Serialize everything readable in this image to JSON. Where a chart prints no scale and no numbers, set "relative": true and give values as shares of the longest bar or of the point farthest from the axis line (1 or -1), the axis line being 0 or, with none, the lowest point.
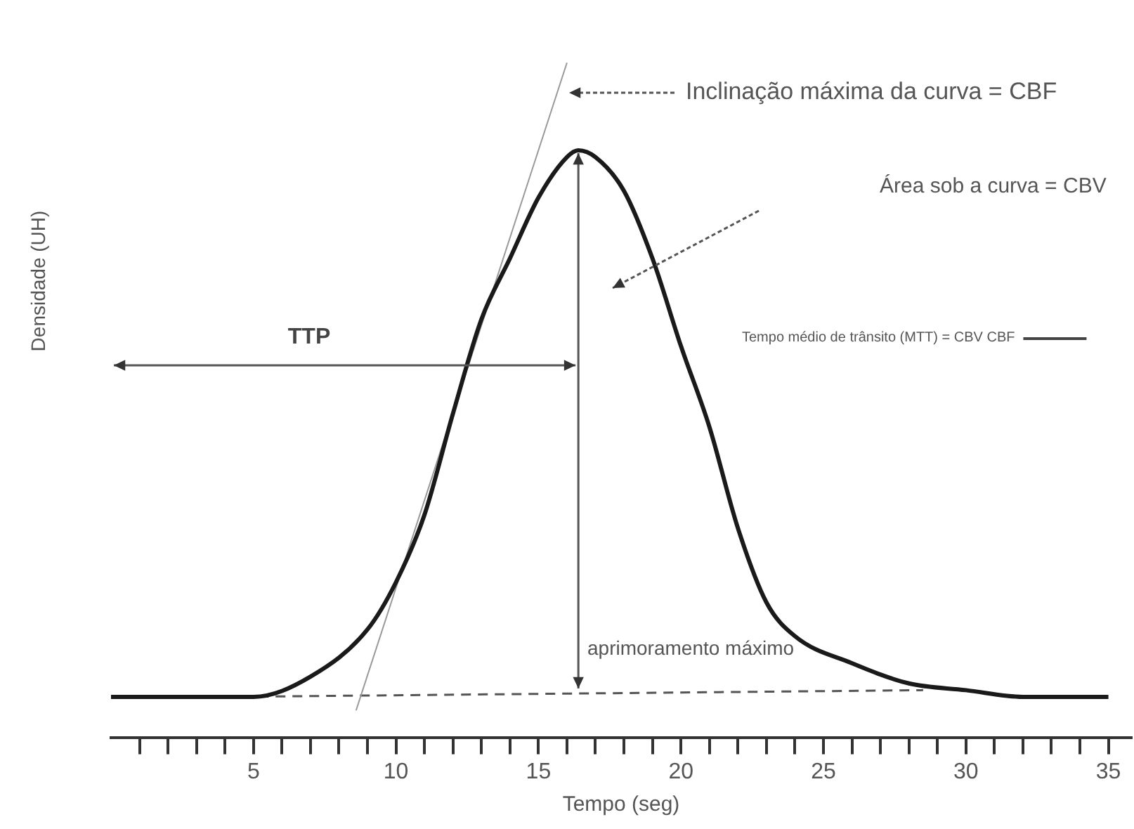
{
  "chart_data": {
    "type": "line",
    "relative": true,
    "xlabel": "Tempo (seg)",
    "ylabel": "Densidade (UH)",
    "xlim": [
      0,
      35.8
    ],
    "xticks": [
      {
        "value": 1,
        "label": null
      },
      {
        "value": 2,
        "label": null
      },
      {
        "value": 3,
        "label": null
      },
      {
        "value": 4,
        "label": null
      },
      5,
      {
        "value": 6,
        "label": null
      },
      {
        "value": 7,
        "label": null
      },
      {
        "value": 8,
        "label": null
      },
      {
        "value": 9,
        "label": null
      },
      10,
      {
        "value": 11,
        "label": null
      },
      {
        "value": 12,
        "label": null
      },
      {
        "value": 13,
        "label": null
      },
      {
        "value": 14,
        "label": null
      },
      15,
      {
        "value": 16,
        "label": null
      },
      {
        "value": 17,
        "label": null
      },
      {
        "value": 18,
        "label": null
      },
      {
        "value": 19,
        "label": null
      },
      20,
      {
        "value": 21,
        "label": null
      },
      {
        "value": 22,
        "label": null
      },
      {
        "value": 23,
        "label": null
      },
      {
        "value": 24,
        "label": null
      },
      25,
      {
        "value": 26,
        "label": null
      },
      {
        "value": 27,
        "label": null
      },
      {
        "value": 28,
        "label": null
      },
      {
        "value": 29,
        "label": null
      },
      30,
      {
        "value": 31,
        "label": null
      },
      {
        "value": 32,
        "label": null
      },
      {
        "value": 33,
        "label": null
      },
      {
        "value": 34,
        "label": null
      },
      35
    ],
    "series": [
      {
        "color": "#1a1a1a",
        "x": [
          0,
          4,
          5,
          7,
          9,
          10,
          11,
          12,
          13,
          14,
          15,
          16,
          16.4,
          17,
          18,
          19,
          20,
          21,
          22,
          23,
          24,
          26,
          28,
          30,
          32,
          35
        ],
        "values": [
          0.06,
          0.06,
          0.06,
          0.09,
          0.16,
          0.23,
          0.33,
          0.48,
          0.62,
          0.71,
          0.8,
          0.86,
          0.87,
          0.86,
          0.81,
          0.71,
          0.58,
          0.46,
          0.31,
          0.2,
          0.15,
          0.11,
          0.08,
          0.07,
          0.06,
          0.06
        ]
      },
      {
        "color": "#999999",
        "x": [
          8.6,
          16.0
        ],
        "values": [
          0.04,
          1
        ]
      },
      {
        "color": "#555555",
        "line_style": "dashed",
        "x": [
          4,
          28.5
        ],
        "values": [
          0.06,
          0.07
        ]
      }
    ],
    "annotations": [
      "Inclinação máxima da curva = CBF",
      "Área sob a curva = CBV",
      "Tempo médio de trânsito (MTT) = CBV CBF",
      "aprimoramento máximo",
      "TTP"
    ],
    "legend": false,
    "grid": false
  }
}
